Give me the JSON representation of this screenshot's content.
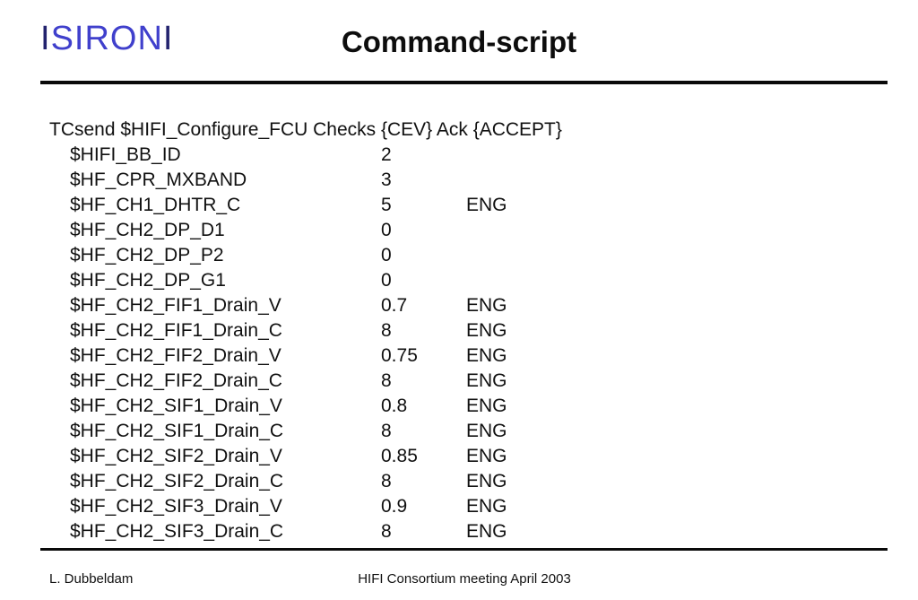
{
  "slide": {
    "logo": {
      "prefix": "I",
      "wordmark": "SIRON",
      "suffix": "I",
      "wordmark_color": "#4040cc",
      "bar_color": "#23236e"
    },
    "title": "Command-script",
    "command": {
      "header": "TCsend $HIFI_Configure_FCU Checks {CEV} Ack {ACCEPT}",
      "rows": [
        {
          "name": "$HIFI_BB_ID",
          "value": "2",
          "unit": ""
        },
        {
          "name": "$HF_CPR_MXBAND",
          "value": "3",
          "unit": ""
        },
        {
          "name": "$HF_CH1_DHTR_C",
          "value": "5",
          "unit": "ENG"
        },
        {
          "name": "$HF_CH2_DP_D1",
          "value": "0",
          "unit": ""
        },
        {
          "name": "$HF_CH2_DP_P2",
          "value": "0",
          "unit": ""
        },
        {
          "name": "$HF_CH2_DP_G1",
          "value": "0",
          "unit": ""
        },
        {
          "name": "$HF_CH2_FIF1_Drain_V",
          "value": "0.7",
          "unit": "ENG"
        },
        {
          "name": "$HF_CH2_FIF1_Drain_C",
          "value": "8",
          "unit": "ENG"
        },
        {
          "name": "$HF_CH2_FIF2_Drain_V",
          "value": "0.75",
          "unit": "ENG"
        },
        {
          "name": "$HF_CH2_FIF2_Drain_C",
          "value": "8",
          "unit": "ENG"
        },
        {
          "name": "$HF_CH2_SIF1_Drain_V",
          "value": "0.8",
          "unit": "ENG"
        },
        {
          "name": "$HF_CH2_SIF1_Drain_C",
          "value": "8",
          "unit": "ENG"
        },
        {
          "name": "$HF_CH2_SIF2_Drain_V",
          "value": "0.85",
          "unit": "ENG"
        },
        {
          "name": "$HF_CH2_SIF2_Drain_C",
          "value": "8",
          "unit": "ENG"
        },
        {
          "name": "$HF_CH2_SIF3_Drain_V",
          "value": "0.9",
          "unit": "ENG"
        },
        {
          "name": "$HF_CH2_SIF3_Drain_C",
          "value": "8",
          "unit": "ENG"
        }
      ]
    },
    "footer": {
      "author": "L. Dubbeldam",
      "meeting": "HIFI Consortium meeting April 2003"
    }
  }
}
